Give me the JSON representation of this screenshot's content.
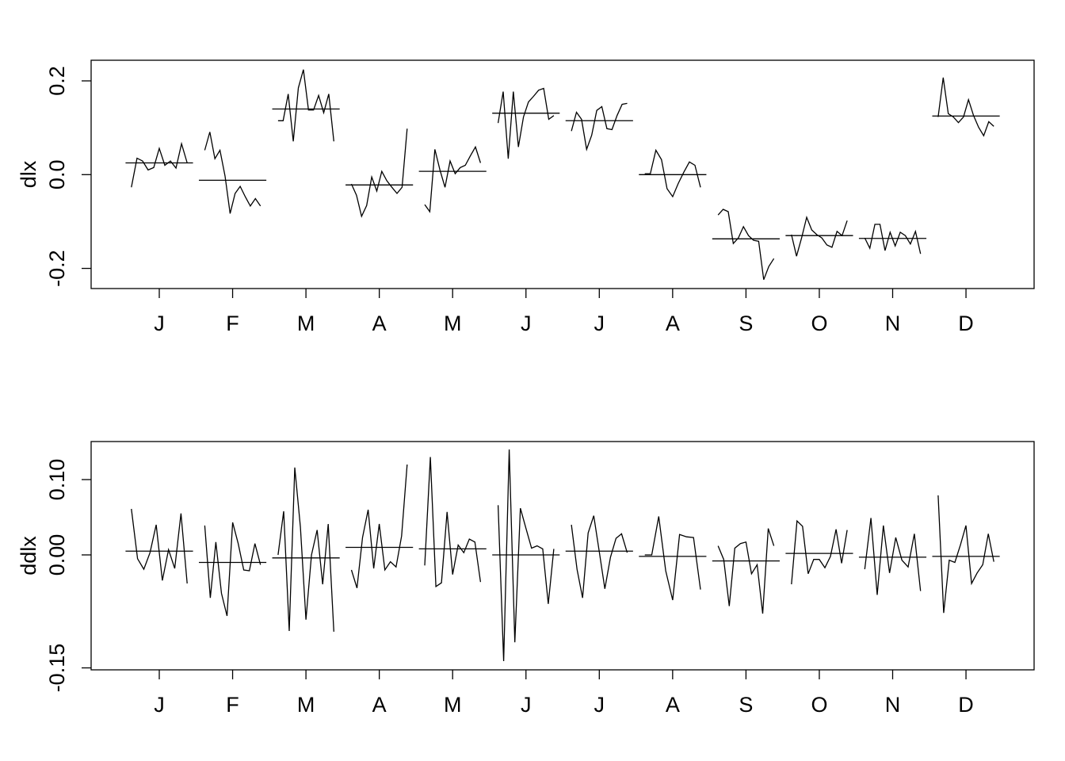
{
  "chart_data": [
    {
      "type": "monthplot",
      "ylabel": "dlx",
      "categories": [
        "J",
        "F",
        "M",
        "A",
        "M",
        "J",
        "J",
        "A",
        "S",
        "O",
        "N",
        "D"
      ],
      "ylim": [
        -0.243,
        0.244
      ],
      "yticks": [
        -0.2,
        {
          "value": 0,
          "label": "0.0"
        },
        0.2
      ],
      "values": [
        [
          -0.027,
          0.035,
          0.029,
          0.01,
          0.015,
          0.056,
          0.02,
          0.029,
          0.014,
          0.066,
          0.025
        ],
        [
          0.052,
          0.091,
          0.034,
          0.052,
          -0.003,
          -0.083,
          -0.04,
          -0.025,
          -0.047,
          -0.067,
          -0.051,
          -0.067
        ],
        [
          0.115,
          0.115,
          0.172,
          0.071,
          0.185,
          0.224,
          0.138,
          0.138,
          0.169,
          0.132,
          0.172,
          0.071
        ],
        [
          -0.02,
          -0.044,
          -0.089,
          -0.066,
          -0.005,
          -0.035,
          0.007,
          -0.013,
          -0.027,
          -0.04,
          -0.027,
          0.098
        ],
        [
          -0.064,
          -0.079,
          0.054,
          0.01,
          -0.027,
          0.029,
          0.002,
          0.015,
          0.02,
          0.04,
          0.059,
          0.025
        ],
        [
          0.11,
          0.177,
          0.034,
          0.177,
          0.059,
          0.123,
          0.155,
          0.167,
          0.18,
          0.184,
          0.118,
          0.126
        ],
        [
          0.093,
          0.133,
          0.118,
          0.054,
          0.084,
          0.137,
          0.145,
          0.098,
          0.096,
          0.126,
          0.15,
          0.152
        ],
        [
          0.002,
          0.002,
          0.052,
          0.032,
          -0.03,
          -0.047,
          -0.019,
          0.005,
          0.027,
          0.02,
          -0.027
        ],
        [
          -0.086,
          -0.074,
          -0.079,
          -0.147,
          -0.135,
          -0.111,
          -0.13,
          -0.14,
          -0.142,
          -0.224,
          -0.196,
          -0.179
        ],
        [
          -0.128,
          -0.174,
          -0.135,
          -0.091,
          -0.118,
          -0.128,
          -0.135,
          -0.15,
          -0.155,
          -0.121,
          -0.13,
          -0.098
        ],
        [
          -0.135,
          -0.157,
          -0.106,
          -0.106,
          -0.162,
          -0.123,
          -0.152,
          -0.123,
          -0.13,
          -0.148,
          -0.121,
          -0.169
        ],
        [
          0.123,
          0.207,
          0.13,
          0.123,
          0.111,
          0.123,
          0.16,
          0.126,
          0.101,
          0.083,
          0.113,
          0.103
        ]
      ],
      "means": [
        0.025,
        -0.012,
        0.14,
        -0.022,
        0.007,
        0.131,
        0.115,
        0.0,
        -0.137,
        -0.13,
        -0.136,
        0.125
      ]
    },
    {
      "type": "monthplot",
      "ylabel": "ddlx",
      "categories": [
        "J",
        "F",
        "M",
        "A",
        "M",
        "J",
        "J",
        "A",
        "S",
        "O",
        "N",
        "D"
      ],
      "ylim": [
        -0.1526,
        0.1505
      ],
      "yticks": [
        -0.15,
        {
          "value": 0,
          "label": "0.00"
        },
        {
          "value": 0.1,
          "label": "0.10"
        }
      ],
      "values": [
        [
          0.061,
          -0.005,
          -0.019,
          0.003,
          0.04,
          -0.034,
          0.007,
          -0.018,
          0.055,
          -0.038
        ],
        [
          0.039,
          -0.057,
          0.017,
          -0.051,
          -0.081,
          0.043,
          0.015,
          -0.02,
          -0.021,
          0.015,
          -0.013
        ],
        [
          0.0,
          0.058,
          -0.101,
          0.116,
          0.037,
          -0.086,
          0.0,
          0.033,
          -0.039,
          0.041,
          -0.102
        ],
        [
          -0.02,
          -0.044,
          0.023,
          0.06,
          -0.018,
          0.041,
          -0.02,
          -0.009,
          -0.016,
          0.025,
          0.12
        ],
        [
          -0.014,
          0.13,
          -0.042,
          -0.037,
          0.057,
          -0.026,
          0.013,
          0.003,
          0.021,
          0.017,
          -0.036
        ],
        [
          0.066,
          -0.141,
          0.14,
          -0.116,
          0.062,
          0.035,
          0.009,
          0.012,
          0.008,
          -0.065,
          0.008
        ],
        [
          0.04,
          -0.019,
          -0.057,
          0.029,
          0.052,
          0.004,
          -0.045,
          -0.003,
          0.022,
          0.028,
          0.003
        ],
        [
          0.0,
          0.0,
          0.051,
          -0.021,
          -0.06,
          0.027,
          0.024,
          0.023,
          -0.046
        ],
        [
          0.012,
          -0.006,
          -0.068,
          0.009,
          0.015,
          0.017,
          -0.025,
          -0.013,
          -0.078,
          0.035,
          0.012
        ],
        [
          -0.039,
          0.045,
          0.038,
          -0.025,
          -0.006,
          -0.006,
          -0.017,
          -0.002,
          0.034,
          -0.011,
          0.033
        ],
        [
          -0.019,
          0.049,
          -0.053,
          0.039,
          -0.024,
          0.023,
          -0.007,
          -0.016,
          0.028,
          -0.048
        ],
        [
          0.079,
          -0.077,
          -0.007,
          -0.01,
          0.013,
          0.039,
          -0.038,
          -0.024,
          -0.013,
          0.028,
          -0.009
        ]
      ],
      "means": [
        0.005,
        -0.01,
        -0.004,
        0.01,
        0.008,
        0.0,
        0.005,
        -0.002,
        -0.008,
        0.002,
        -0.003,
        -0.002
      ]
    }
  ]
}
